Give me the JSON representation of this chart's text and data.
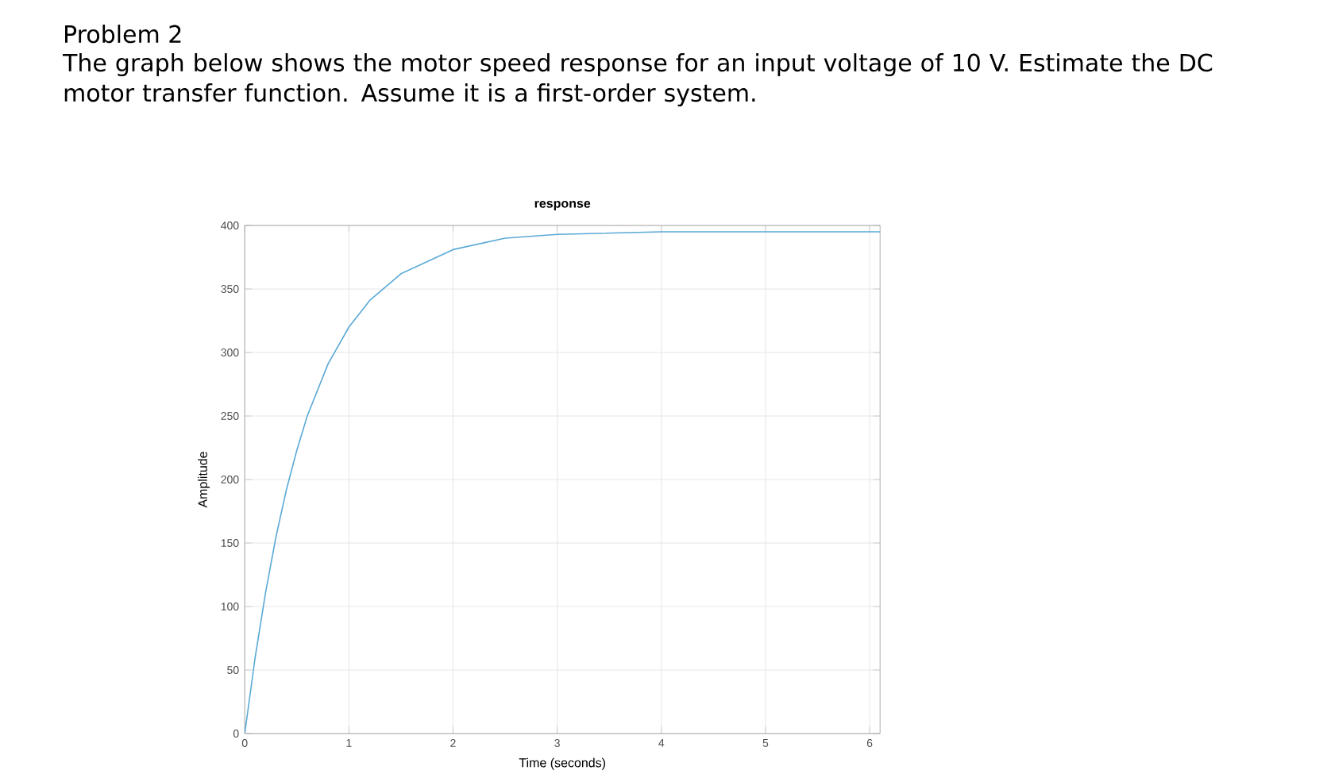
{
  "chart_data": {
    "type": "line",
    "title": "response",
    "xlabel": "Time (seconds)",
    "ylabel": "Amplitude",
    "annotations": [
      "Problem 2",
      "The graph below shows the motor speed response for an input voltage of 10 V. Estimate the DC motor transfer function. Assume it is a first-order system."
    ],
    "x": [
      0,
      0.1,
      0.2,
      0.3,
      0.4,
      0.5,
      0.6,
      0.8,
      1.0,
      1.2,
      1.5,
      2.0,
      2.5,
      3.0,
      4.0,
      5.0,
      6.1
    ],
    "series": [
      {
        "color": "#5aa9d6",
        "values": [
          0,
          60,
          111,
          155,
          192,
          223,
          250,
          291,
          320,
          341,
          362,
          381,
          390,
          393,
          395,
          395,
          395
        ]
      }
    ],
    "xlim": [
      0,
      6.1
    ],
    "ylim": [
      0,
      400
    ],
    "xticks": [
      0,
      1,
      2,
      3,
      4,
      5,
      6
    ],
    "yticks": [
      0,
      50,
      100,
      150,
      200,
      250,
      300,
      350,
      400
    ],
    "grid": true,
    "marker": "none",
    "line_style": "solid"
  }
}
